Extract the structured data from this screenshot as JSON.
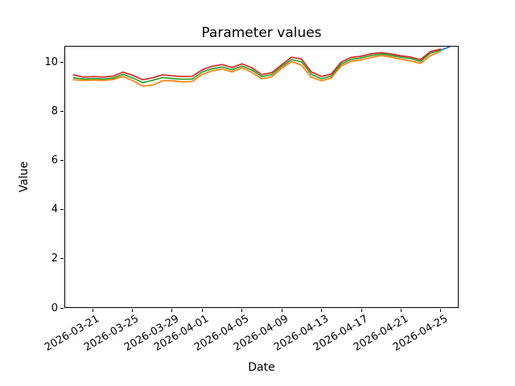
{
  "figure": {
    "title": "Parameter values",
    "xlabel": "Date",
    "ylabel": "Value",
    "background_color": "#ffffff",
    "spine_color": "#000000"
  },
  "chart_data": {
    "type": "line",
    "title": "Parameter values",
    "xlabel": "Date",
    "ylabel": "Value",
    "grid": false,
    "legend": "none",
    "ylim": [
      0,
      10.65
    ],
    "yticks": [
      0,
      2,
      4,
      6,
      8,
      10
    ],
    "xtick_labels": [
      "2026-03-21",
      "2026-03-25",
      "2026-03-29",
      "2026-04-01",
      "2026-04-05",
      "2026-04-09",
      "2026-04-13",
      "2026-04-17",
      "2026-04-21",
      "2026-04-25"
    ],
    "x": [
      "2026-03-19",
      "2026-03-20",
      "2026-03-21",
      "2026-03-22",
      "2026-03-23",
      "2026-03-24",
      "2026-03-25",
      "2026-03-26",
      "2026-03-27",
      "2026-03-28",
      "2026-03-29",
      "2026-03-30",
      "2026-03-31",
      "2026-04-01",
      "2026-04-02",
      "2026-04-03",
      "2026-04-04",
      "2026-04-05",
      "2026-04-06",
      "2026-04-07",
      "2026-04-08",
      "2026-04-09",
      "2026-04-10",
      "2026-04-11",
      "2026-04-12",
      "2026-04-13",
      "2026-04-14",
      "2026-04-15",
      "2026-04-16",
      "2026-04-17",
      "2026-04-18",
      "2026-04-19",
      "2026-04-20",
      "2026-04-21",
      "2026-04-22",
      "2026-04-23",
      "2026-04-24",
      "2026-04-25"
    ],
    "series": [
      {
        "name": "blue",
        "color": "#1f77b4",
        "x": [
          "2026-04-25",
          "2026-04-26"
        ],
        "values": [
          10.5,
          10.66
        ]
      },
      {
        "name": "orange",
        "color": "#ff7f0e",
        "values": [
          9.3,
          9.27,
          9.29,
          9.27,
          9.31,
          9.43,
          9.26,
          9.04,
          9.08,
          9.26,
          9.26,
          9.21,
          9.23,
          9.52,
          9.66,
          9.74,
          9.62,
          9.79,
          9.6,
          9.34,
          9.42,
          9.76,
          10.04,
          9.9,
          9.4,
          9.26,
          9.37,
          9.86,
          10.05,
          10.11,
          10.21,
          10.29,
          10.23,
          10.14,
          10.07,
          9.97,
          10.28,
          10.46
        ]
      },
      {
        "name": "green",
        "color": "#2ca02c",
        "values": [
          9.38,
          9.33,
          9.35,
          9.33,
          9.37,
          9.52,
          9.37,
          9.18,
          9.28,
          9.39,
          9.35,
          9.32,
          9.33,
          9.62,
          9.75,
          9.82,
          9.71,
          9.86,
          9.7,
          9.43,
          9.51,
          9.84,
          10.12,
          10.04,
          9.52,
          9.34,
          9.45,
          9.94,
          10.13,
          10.19,
          10.29,
          10.35,
          10.3,
          10.22,
          10.17,
          10.05,
          10.38,
          10.52
        ]
      },
      {
        "name": "red",
        "color": "#d62728",
        "values": [
          9.5,
          9.41,
          9.43,
          9.41,
          9.45,
          9.61,
          9.48,
          9.3,
          9.38,
          9.5,
          9.46,
          9.43,
          9.44,
          9.71,
          9.85,
          9.92,
          9.8,
          9.95,
          9.79,
          9.51,
          9.59,
          9.91,
          10.22,
          10.15,
          9.62,
          9.44,
          9.53,
          10.02,
          10.21,
          10.26,
          10.36,
          10.41,
          10.36,
          10.28,
          10.23,
          10.12,
          10.45,
          10.55
        ]
      }
    ]
  }
}
